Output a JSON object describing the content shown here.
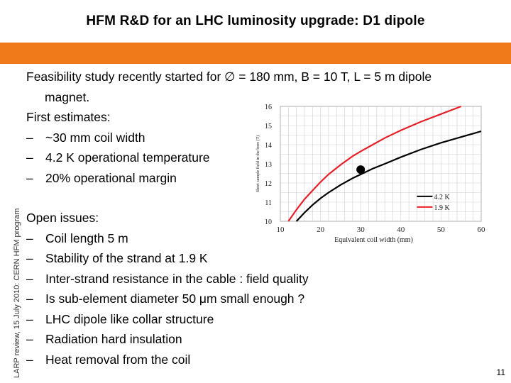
{
  "slide": {
    "title": "HFM R&D for an LHC luminosity upgrade: D1 dipole",
    "side_label": "LARP review, 15 July 2010: CERN HFM program",
    "page_number": "11",
    "accent_color": "#f07a1a"
  },
  "content": {
    "intro_line1": "Feasibility study recently started for ∅ = 180 mm, B = 10 T, L = 5 m dipole",
    "intro_line2": "magnet.",
    "estimates_heading": "First estimates:",
    "estimates": [
      "~30 mm coil width",
      "4.2 K operational temperature",
      "20% operational margin"
    ],
    "issues_heading": "Open issues:",
    "issues": [
      "Coil length 5 m",
      "Stability of the strand at 1.9 K",
      "Inter-strand resistance in the cable : field quality",
      "Is sub-element diameter 50 μm small enough ?",
      "LHC dipole like collar structure",
      "Radiation hard insulation",
      "Heat removal from the coil"
    ]
  },
  "chart_data": {
    "type": "line",
    "xlabel": "Equivalent coil width (mm)",
    "ylabel": "Short sample field in the bore (T)",
    "xlim": [
      10,
      60
    ],
    "ylim": [
      10,
      16
    ],
    "xticks": [
      10,
      20,
      30,
      40,
      50,
      60
    ],
    "yticks": [
      10,
      11,
      12,
      13,
      14,
      15,
      16
    ],
    "grid": true,
    "legend_position": "bottom-right",
    "series": [
      {
        "name": "4.2 K",
        "color": "#000000",
        "x": [
          14,
          16,
          18,
          20,
          22,
          25,
          28,
          30,
          33,
          36,
          40,
          45,
          50,
          55,
          60
        ],
        "y": [
          10.0,
          10.45,
          10.85,
          11.2,
          11.5,
          11.9,
          12.25,
          12.45,
          12.75,
          13.0,
          13.35,
          13.75,
          14.1,
          14.4,
          14.7
        ]
      },
      {
        "name": "1.9 K",
        "color": "#e8202a",
        "x": [
          12,
          14,
          16,
          18,
          20,
          22,
          25,
          28,
          30,
          33,
          36,
          40,
          45,
          50,
          55
        ],
        "y": [
          10.0,
          10.6,
          11.15,
          11.6,
          12.05,
          12.45,
          12.95,
          13.4,
          13.65,
          14.0,
          14.35,
          14.75,
          15.2,
          15.6,
          16.0
        ]
      }
    ],
    "highlight_point": {
      "x": 30,
      "y": 12.7
    }
  }
}
